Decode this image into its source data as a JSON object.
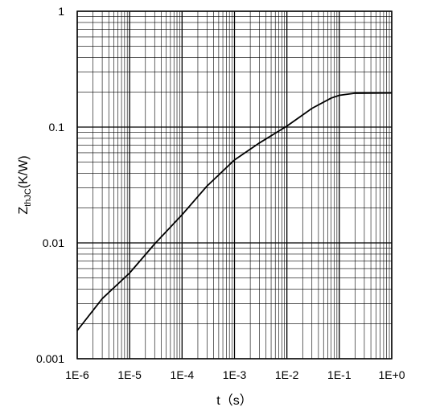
{
  "chart_data": {
    "type": "line",
    "x_scale": "log",
    "y_scale": "log",
    "xlim": [
      1e-06,
      1
    ],
    "ylim": [
      0.001,
      1
    ],
    "xlabel": "t（s）",
    "ylabel_main": "Z",
    "ylabel_sub": "thJC",
    "ylabel_tail": "(K/W)",
    "grid": true,
    "x_ticks": [
      {
        "value": 1e-06,
        "label": "1E-6"
      },
      {
        "value": 1e-05,
        "label": "1E-5"
      },
      {
        "value": 0.0001,
        "label": "1E-4"
      },
      {
        "value": 0.001,
        "label": "1E-3"
      },
      {
        "value": 0.01,
        "label": "1E-2"
      },
      {
        "value": 0.1,
        "label": "1E-1"
      },
      {
        "value": 1,
        "label": "1E+0"
      }
    ],
    "y_ticks": [
      {
        "value": 0.001,
        "label": "0.001"
      },
      {
        "value": 0.01,
        "label": "0.01"
      },
      {
        "value": 0.1,
        "label": "0.1"
      },
      {
        "value": 1,
        "label": "1"
      }
    ],
    "series": [
      {
        "color": "#000000",
        "points": [
          {
            "x": 1e-06,
            "y": 0.00175
          },
          {
            "x": 3e-06,
            "y": 0.0033
          },
          {
            "x": 1e-05,
            "y": 0.0055
          },
          {
            "x": 3e-05,
            "y": 0.0098
          },
          {
            "x": 0.0001,
            "y": 0.0175
          },
          {
            "x": 0.0003,
            "y": 0.031
          },
          {
            "x": 0.001,
            "y": 0.052
          },
          {
            "x": 0.003,
            "y": 0.073
          },
          {
            "x": 0.01,
            "y": 0.102
          },
          {
            "x": 0.03,
            "y": 0.145
          },
          {
            "x": 0.07,
            "y": 0.178
          },
          {
            "x": 0.1,
            "y": 0.188
          },
          {
            "x": 0.2,
            "y": 0.196
          },
          {
            "x": 1,
            "y": 0.197
          }
        ]
      }
    ]
  }
}
